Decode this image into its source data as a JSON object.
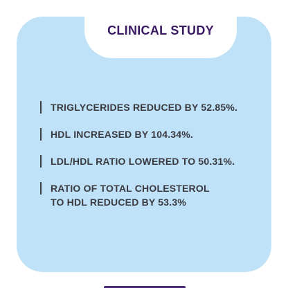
{
  "header": {
    "title": "CLINICAL STUDY"
  },
  "findings": [
    {
      "text": "TRIGLYCERIDES REDUCED BY 52.85%."
    },
    {
      "text": "HDL INCREASED BY 104.34%."
    },
    {
      "text": "LDL/HDL RATIO LOWERED TO 50.31%."
    },
    {
      "text": "RATIO OF TOTAL CHOLESTEROL\nTO HDL REDUCED BY 53.3%"
    }
  ],
  "colors": {
    "card_background": "#bfe2f8",
    "title": "#3a1a63",
    "text": "#3a3a40",
    "accent": "#4a2b78"
  }
}
